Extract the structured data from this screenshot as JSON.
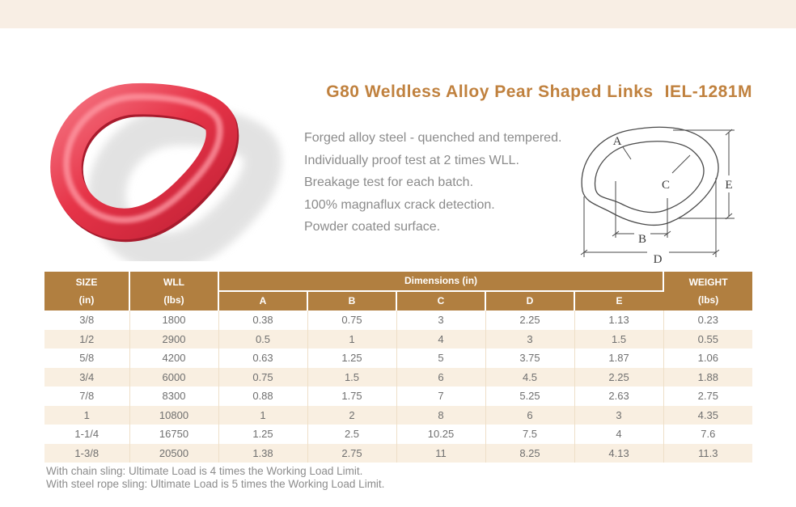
{
  "header": {
    "title": "G80 Weldless Alloy Pear Shaped Links",
    "model": "IEL-1281M"
  },
  "description": {
    "lines": [
      "Forged alloy steel - quenched and tempered.",
      "Individually proof test at 2 times WLL.",
      "Breakage test for each batch.",
      "100% magnaflux crack detection.",
      "Powder coated surface."
    ]
  },
  "diagram": {
    "labels": [
      "A",
      "B",
      "C",
      "D",
      "E"
    ]
  },
  "table": {
    "header": {
      "size": "SIZE",
      "size_unit": "(in)",
      "wll": "WLL",
      "wll_unit": "(lbs)",
      "dimensions": "Dimensions (in)",
      "dim_cols": [
        "A",
        "B",
        "C",
        "D",
        "E"
      ],
      "weight": "WEIGHT",
      "weight_unit": "(lbs)"
    },
    "rows": [
      [
        "3/8",
        "1800",
        "0.38",
        "0.75",
        "3",
        "2.25",
        "1.13",
        "0.23"
      ],
      [
        "1/2",
        "2900",
        "0.5",
        "1",
        "4",
        "3",
        "1.5",
        "0.55"
      ],
      [
        "5/8",
        "4200",
        "0.63",
        "1.25",
        "5",
        "3.75",
        "1.87",
        "1.06"
      ],
      [
        "3/4",
        "6000",
        "0.75",
        "1.5",
        "6",
        "4.5",
        "2.25",
        "1.88"
      ],
      [
        "7/8",
        "8300",
        "0.88",
        "1.75",
        "7",
        "5.25",
        "2.63",
        "2.75"
      ],
      [
        "1",
        "10800",
        "1",
        "2",
        "8",
        "6",
        "3",
        "4.35"
      ],
      [
        "1-1/4",
        "16750",
        "1.25",
        "2.5",
        "10.25",
        "7.5",
        "4",
        "7.6"
      ],
      [
        "1-3/8",
        "20500",
        "1.38",
        "2.75",
        "11",
        "8.25",
        "4.13",
        "11.3"
      ]
    ]
  },
  "notes": {
    "lines": [
      "With chain sling: Ultimate Load is 4 times the Working Load Limit.",
      "With steel rope sling: Ultimate Load is 5 times the Working Load Limit."
    ]
  },
  "colors": {
    "topbar_bg": "#f8eee4",
    "title_text": "#c0813e",
    "description_text": "#8b8b8b",
    "table_header_bg": "#b17f40",
    "table_header_text": "#ffffff",
    "row_alt_bg": "#f9efe1",
    "cell_border": "#eedfc8",
    "cell_text": "#6f6f6f",
    "note_text": "#8c8c8c",
    "product_ring_red": "#e63448",
    "diagram_line": "#4a4a4a"
  }
}
